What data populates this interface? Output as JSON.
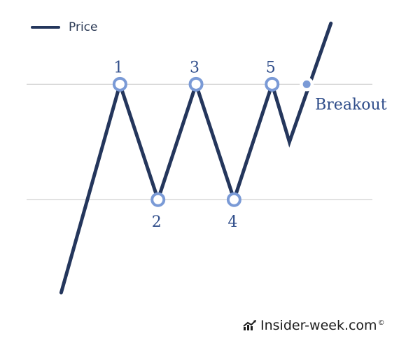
{
  "chart_data": {
    "type": "line",
    "title": "",
    "xlabel": "",
    "ylabel": "",
    "legend": {
      "position": "top-left",
      "entries": [
        "Price"
      ]
    },
    "grid": false,
    "xlim": [
      0,
      100
    ],
    "ylim": [
      0,
      100
    ],
    "series": [
      {
        "name": "Price",
        "color": "#24365c",
        "x": [
          10,
          27,
          38,
          49,
          60,
          71,
          76,
          88
        ],
        "y": [
          12,
          77,
          41,
          77,
          41,
          77,
          59,
          96
        ]
      }
    ],
    "reference_lines": [
      {
        "y": 77,
        "color": "#d0d0d0"
      },
      {
        "y": 41,
        "color": "#d0d0d0"
      }
    ],
    "pivot_points": [
      {
        "label": "1",
        "x": 27,
        "y": 77,
        "label_position": "above"
      },
      {
        "label": "2",
        "x": 38,
        "y": 41,
        "label_position": "below"
      },
      {
        "label": "3",
        "x": 49,
        "y": 77,
        "label_position": "above"
      },
      {
        "label": "4",
        "x": 60,
        "y": 41,
        "label_position": "below"
      },
      {
        "label": "5",
        "x": 71,
        "y": 77,
        "label_position": "above"
      }
    ],
    "breakout": {
      "label": "Breakout",
      "x": 81,
      "y": 77,
      "color": "#7a9ad6"
    },
    "marker_color": "#7a9ad6",
    "label_color": "#2f4d8a"
  },
  "watermark": {
    "text": "Insider-week.com",
    "mark": "©"
  }
}
